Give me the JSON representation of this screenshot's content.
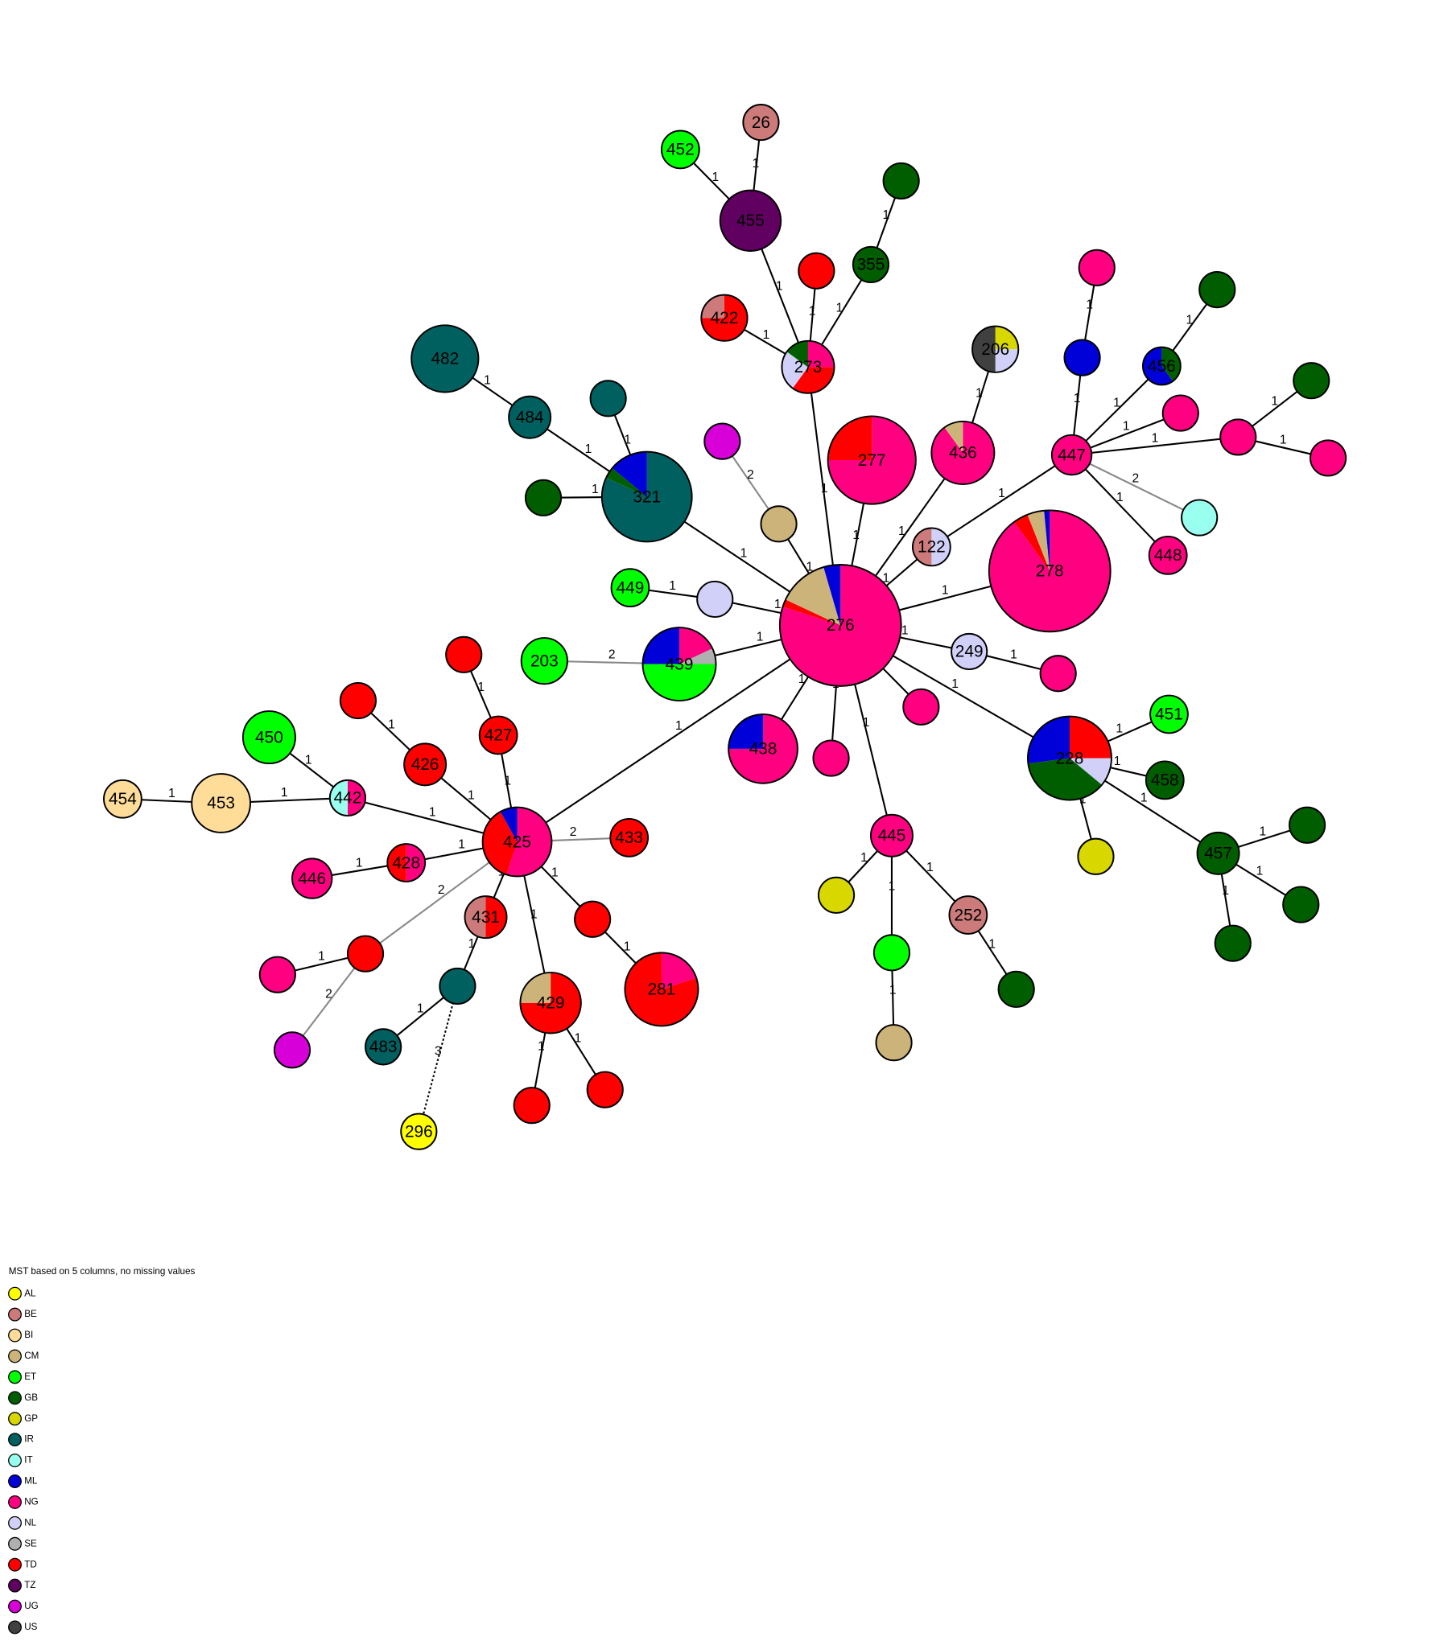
{
  "node_labels": [
    "276",
    "278",
    "321",
    "482",
    "484",
    "277",
    "436",
    "206",
    "447",
    "456",
    "448",
    "122",
    "249",
    "228",
    "451",
    "458",
    "457",
    "438",
    "445",
    "252",
    "449",
    "439",
    "203",
    "273",
    "422",
    "355",
    "455",
    "26",
    "452",
    "425",
    "427",
    "426",
    "442",
    "450",
    "453",
    "454",
    "428",
    "446",
    "433",
    "431",
    "281",
    "429",
    "483",
    "296"
  ],
  "edge_labels": [
    1,
    1,
    1,
    1,
    1,
    1,
    1,
    1,
    1,
    1,
    1,
    1,
    1,
    1,
    2,
    1,
    1,
    1,
    1,
    1,
    1,
    1,
    1,
    1,
    1,
    1,
    1,
    1,
    2,
    1,
    1,
    1,
    1,
    1,
    1,
    1,
    1,
    1,
    1,
    1,
    1,
    1,
    1,
    1,
    1,
    1,
    1,
    1,
    1,
    1,
    1,
    1,
    1,
    2,
    1,
    1,
    1,
    1,
    1,
    1,
    1,
    1,
    1,
    1,
    1,
    2,
    1,
    1,
    1,
    3,
    1,
    1,
    1,
    1,
    1,
    2,
    1,
    2
  ],
  "legend": {
    "title": "MST based on 5 columns, no missing values",
    "items": [
      {
        "name": "AL",
        "color": "#ffff00"
      },
      {
        "name": "BE",
        "color": "#cc7a7a"
      },
      {
        "name": "BI",
        "color": "#ffdd99"
      },
      {
        "name": "CM",
        "color": "#ccb37a"
      },
      {
        "name": "ET",
        "color": "#00ff00"
      },
      {
        "name": "GB",
        "color": "#005e00"
      },
      {
        "name": "GP",
        "color": "#d8d800"
      },
      {
        "name": "IR",
        "color": "#006060"
      },
      {
        "name": "IT",
        "color": "#99ffee"
      },
      {
        "name": "ML",
        "color": "#0000d8"
      },
      {
        "name": "NG",
        "color": "#ff0080"
      },
      {
        "name": "NL",
        "color": "#d0d0f8"
      },
      {
        "name": "SE",
        "color": "#b0b0b0"
      },
      {
        "name": "TD",
        "color": "#ff0000"
      },
      {
        "name": "TZ",
        "color": "#600060"
      },
      {
        "name": "UG",
        "color": "#d800d8"
      },
      {
        "name": "US",
        "color": "#404040"
      }
    ]
  }
}
